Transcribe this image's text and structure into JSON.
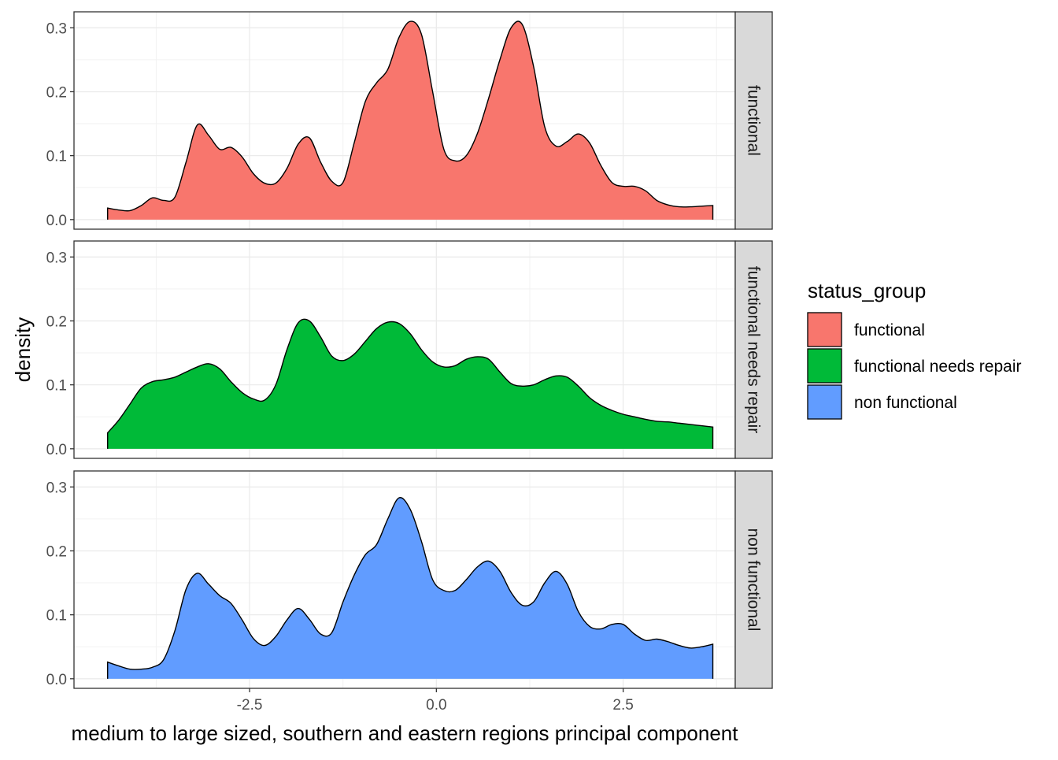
{
  "chart_data": {
    "type": "area",
    "subtype": "faceted density",
    "xlabel": "medium to large sized, southern and eastern regions principal component",
    "ylabel": "density",
    "xlim": [
      -4.85,
      4.0
    ],
    "ylim": [
      -0.015,
      0.325
    ],
    "x_ticks": [
      -2.5,
      0.0,
      2.5
    ],
    "x_tick_labels": [
      "-2.5",
      "0.0",
      "2.5"
    ],
    "y_ticks": [
      0.0,
      0.1,
      0.2,
      0.3
    ],
    "y_tick_labels": [
      "0.0",
      "0.1",
      "0.2",
      "0.3"
    ],
    "grid": true,
    "legend": {
      "title": "status_group",
      "position": "right",
      "entries": [
        "functional",
        "functional needs repair",
        "non functional"
      ]
    },
    "series": [
      {
        "name": "functional",
        "color": "#F8766D",
        "x": [
          -4.4,
          -4.25,
          -4.1,
          -3.95,
          -3.8,
          -3.65,
          -3.5,
          -3.35,
          -3.2,
          -3.05,
          -2.9,
          -2.75,
          -2.6,
          -2.45,
          -2.3,
          -2.15,
          -2.0,
          -1.85,
          -1.7,
          -1.55,
          -1.4,
          -1.25,
          -1.1,
          -0.95,
          -0.8,
          -0.65,
          -0.5,
          -0.35,
          -0.2,
          -0.05,
          0.1,
          0.25,
          0.4,
          0.55,
          0.7,
          0.85,
          1.0,
          1.15,
          1.3,
          1.45,
          1.6,
          1.75,
          1.9,
          2.05,
          2.2,
          2.35,
          2.5,
          2.65,
          2.8,
          2.95,
          3.1,
          3.25,
          3.4,
          3.55,
          3.7
        ],
        "y": [
          0.018,
          0.015,
          0.014,
          0.022,
          0.034,
          0.03,
          0.035,
          0.09,
          0.148,
          0.132,
          0.11,
          0.113,
          0.098,
          0.072,
          0.057,
          0.057,
          0.08,
          0.118,
          0.128,
          0.09,
          0.06,
          0.058,
          0.12,
          0.185,
          0.214,
          0.235,
          0.285,
          0.31,
          0.29,
          0.2,
          0.11,
          0.092,
          0.1,
          0.135,
          0.19,
          0.25,
          0.3,
          0.305,
          0.24,
          0.145,
          0.115,
          0.122,
          0.134,
          0.12,
          0.085,
          0.058,
          0.052,
          0.052,
          0.045,
          0.03,
          0.023,
          0.02,
          0.02,
          0.021,
          0.022
        ],
        "y_fixed": true
      },
      {
        "name": "functional needs repair",
        "color": "#00BA38",
        "x": [
          -4.4,
          -4.25,
          -4.1,
          -3.95,
          -3.8,
          -3.65,
          -3.5,
          -3.35,
          -3.2,
          -3.05,
          -2.9,
          -2.75,
          -2.6,
          -2.45,
          -2.3,
          -2.15,
          -2.0,
          -1.85,
          -1.7,
          -1.55,
          -1.4,
          -1.25,
          -1.1,
          -0.95,
          -0.8,
          -0.65,
          -0.5,
          -0.35,
          -0.2,
          -0.05,
          0.1,
          0.25,
          0.4,
          0.55,
          0.7,
          0.85,
          1.0,
          1.15,
          1.3,
          1.45,
          1.6,
          1.75,
          1.9,
          2.05,
          2.2,
          2.35,
          2.5,
          2.65,
          2.8,
          2.95,
          3.1,
          3.25,
          3.4,
          3.55,
          3.7
        ],
        "y": [
          0.025,
          0.045,
          0.07,
          0.095,
          0.105,
          0.108,
          0.112,
          0.12,
          0.128,
          0.133,
          0.125,
          0.105,
          0.088,
          0.078,
          0.076,
          0.1,
          0.155,
          0.197,
          0.2,
          0.175,
          0.145,
          0.138,
          0.148,
          0.168,
          0.188,
          0.198,
          0.196,
          0.18,
          0.155,
          0.136,
          0.128,
          0.13,
          0.14,
          0.144,
          0.14,
          0.12,
          0.102,
          0.098,
          0.1,
          0.108,
          0.114,
          0.112,
          0.098,
          0.08,
          0.068,
          0.06,
          0.054,
          0.05,
          0.046,
          0.043,
          0.042,
          0.04,
          0.038,
          0.036,
          0.034
        ],
        "y_fixed": true
      },
      {
        "name": "non functional",
        "color": "#619CFF",
        "x": [
          -4.4,
          -4.25,
          -4.1,
          -3.95,
          -3.8,
          -3.65,
          -3.5,
          -3.35,
          -3.2,
          -3.05,
          -2.9,
          -2.75,
          -2.6,
          -2.45,
          -2.3,
          -2.15,
          -2.0,
          -1.85,
          -1.7,
          -1.55,
          -1.4,
          -1.25,
          -1.1,
          -0.95,
          -0.8,
          -0.65,
          -0.5,
          -0.35,
          -0.2,
          -0.05,
          0.1,
          0.25,
          0.4,
          0.55,
          0.7,
          0.85,
          1.0,
          1.15,
          1.3,
          1.45,
          1.6,
          1.75,
          1.9,
          2.05,
          2.2,
          2.35,
          2.5,
          2.65,
          2.8,
          2.95,
          3.1,
          3.25,
          3.4,
          3.55,
          3.7
        ],
        "y": [
          0.026,
          0.02,
          0.015,
          0.015,
          0.018,
          0.03,
          0.075,
          0.14,
          0.165,
          0.148,
          0.13,
          0.118,
          0.092,
          0.063,
          0.052,
          0.066,
          0.092,
          0.11,
          0.093,
          0.07,
          0.072,
          0.12,
          0.162,
          0.194,
          0.21,
          0.25,
          0.283,
          0.265,
          0.215,
          0.155,
          0.138,
          0.138,
          0.155,
          0.175,
          0.184,
          0.168,
          0.135,
          0.115,
          0.12,
          0.15,
          0.168,
          0.148,
          0.105,
          0.082,
          0.078,
          0.085,
          0.085,
          0.07,
          0.06,
          0.062,
          0.058,
          0.052,
          0.048,
          0.05,
          0.054
        ],
        "y_fixed": true
      }
    ]
  }
}
